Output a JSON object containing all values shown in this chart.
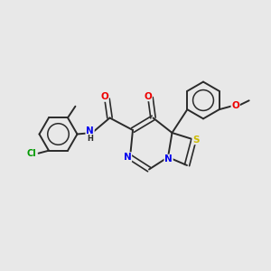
{
  "background_color": "#e8e8e8",
  "bond_color": "#2a2a2a",
  "atom_colors": {
    "N": "#0000ee",
    "O": "#ee0000",
    "S": "#ccbb00",
    "Cl": "#009900",
    "C": "#2a2a2a",
    "H": "#2a2a2a"
  },
  "figsize": [
    3.0,
    3.0
  ],
  "dpi": 100,
  "xlim": [
    0,
    10
  ],
  "ylim": [
    0,
    10
  ]
}
